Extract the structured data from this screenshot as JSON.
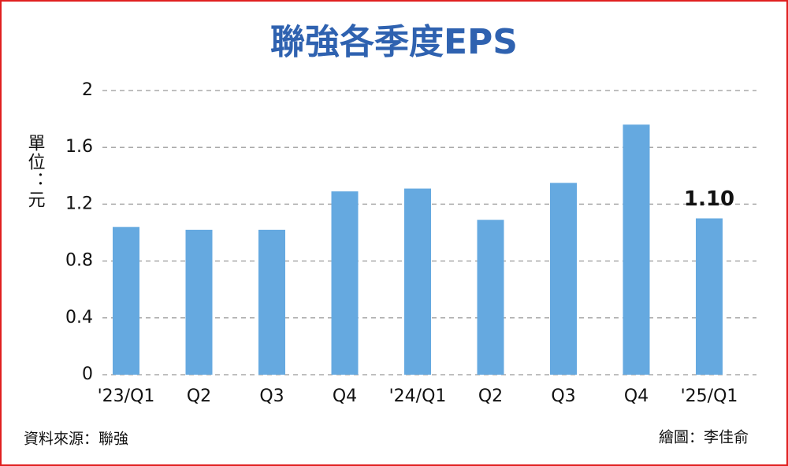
{
  "chart_data": {
    "type": "bar",
    "title": "聯強各季度EPS",
    "y_label": "單位：元",
    "categories": [
      "'23/Q1",
      "Q2",
      "Q3",
      "Q4",
      "'24/Q1",
      "Q2",
      "Q3",
      "Q4",
      "'25/Q1"
    ],
    "values": [
      1.04,
      1.02,
      1.02,
      1.29,
      1.31,
      1.09,
      1.35,
      1.76,
      1.1
    ],
    "value_labels": [
      null,
      null,
      null,
      null,
      null,
      null,
      null,
      null,
      "1.10"
    ],
    "color": "#65a9e0",
    "ylim": [
      0,
      2
    ],
    "yticks": [
      0,
      0.4,
      0.8,
      1.2,
      1.6,
      2
    ],
    "grid": true,
    "source": "資料來源：聯強",
    "credit": "繪圖：李佳俞"
  }
}
